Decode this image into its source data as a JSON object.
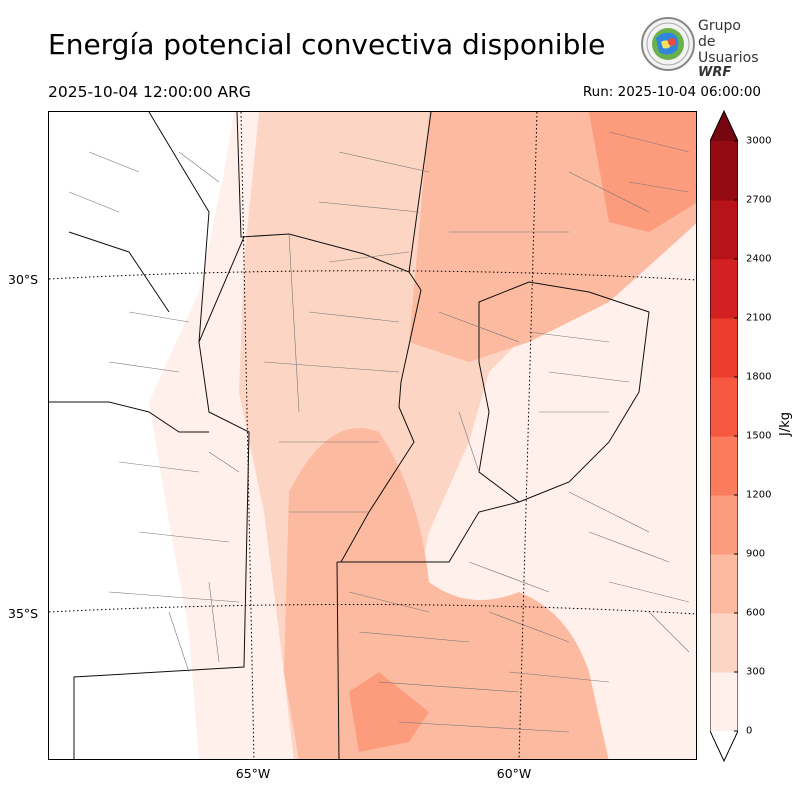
{
  "header": {
    "title": "Energía potencial convectiva disponible",
    "valid_time": "2025-10-04 12:00:00 ARG",
    "run_time": "Run: 2025-10-04 06:00:00"
  },
  "logo": {
    "line1": "Grupo de",
    "line2": "Usuarios",
    "line3": "WRF"
  },
  "map": {
    "lat_labels": [
      "30°S",
      "35°S"
    ],
    "lon_labels": [
      "65°W",
      "60°W"
    ]
  },
  "colorbar": {
    "unit": "J/kg",
    "ticks": [
      "0",
      "300",
      "600",
      "900",
      "1200",
      "1500",
      "1800",
      "2100",
      "2400",
      "2700",
      "3000"
    ],
    "colors": [
      "#fff0eb",
      "#fdd5c4",
      "#fcbaa0",
      "#fc9c7d",
      "#fb7c5c",
      "#f6573f",
      "#ec3c2d",
      "#d32020",
      "#b71319",
      "#950b13",
      "#760711"
    ],
    "extend": "both"
  }
}
